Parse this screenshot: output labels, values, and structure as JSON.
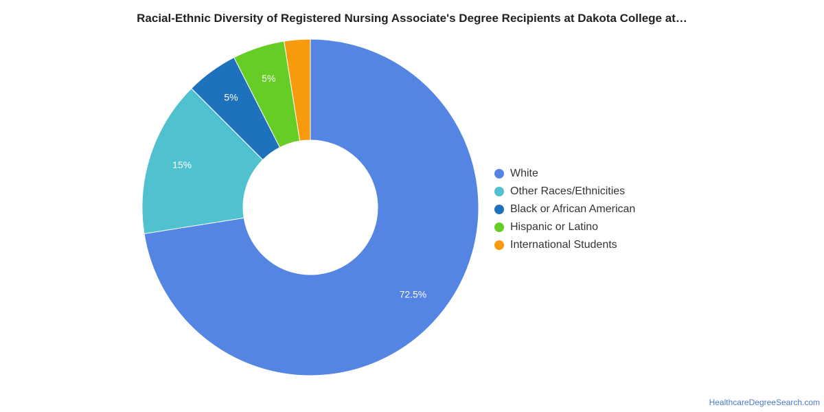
{
  "header": {
    "title": "Racial-Ethnic Diversity of Registered Nursing Associate's Degree Recipients at Dakota College at…"
  },
  "chart_data": {
    "type": "pie",
    "donut": true,
    "title": "Racial-Ethnic Diversity of Registered Nursing Associate's Degree Recipients at Dakota College at…",
    "categories": [
      "White",
      "Other Races/Ethnicities",
      "Black or African American",
      "Hispanic or Latino",
      "International Students"
    ],
    "values": [
      72.5,
      15,
      5,
      5,
      2.5
    ],
    "data_labels": [
      "72.5%",
      "15%",
      "5%",
      "5%",
      ""
    ],
    "colors": [
      "#5485e2",
      "#50c1cf",
      "#1e71bb",
      "#66cd26",
      "#f79a0b"
    ],
    "legend_position": "right"
  },
  "legend": {
    "items": [
      {
        "label": "White",
        "color": "#5485e2"
      },
      {
        "label": "Other Races/Ethnicities",
        "color": "#50c1cf"
      },
      {
        "label": "Black or African American",
        "color": "#1e71bb"
      },
      {
        "label": "Hispanic or Latino",
        "color": "#66cd26"
      },
      {
        "label": "International Students",
        "color": "#f79a0b"
      }
    ]
  },
  "footer": {
    "source": "HealthcareDegreeSearch.com"
  }
}
